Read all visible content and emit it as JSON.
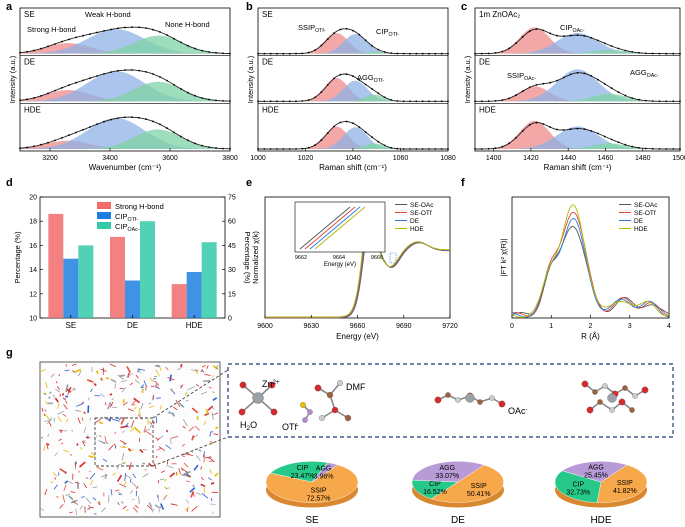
{
  "panel_letters": [
    "a",
    "b",
    "c",
    "d",
    "e",
    "f",
    "g"
  ],
  "chart_data": [
    {
      "id": "a",
      "type": "line",
      "title": "",
      "xlabel": "Wavenumber (cm⁻¹)",
      "ylabel": "Intensity (a.u.)",
      "xlim": [
        3100,
        3800
      ],
      "xticks": [
        3200,
        3400,
        3600,
        3800
      ],
      "row_labels": [
        "SE",
        "DE",
        "HDE"
      ],
      "annotations": [
        "Strong H-bond",
        "Weak H-bond",
        "None H-bond"
      ],
      "components": [
        {
          "name": "Strong H-bond",
          "color": "#f08a8a",
          "center": 3260,
          "width": 75
        },
        {
          "name": "Weak H-bond",
          "color": "#8fb2e6",
          "center": 3420,
          "width": 95
        },
        {
          "name": "None H-bond",
          "color": "#7fd3a6",
          "center": 3560,
          "width": 80
        }
      ],
      "rows": [
        {
          "label": "SE",
          "amps": [
            0.28,
            0.65,
            0.48
          ]
        },
        {
          "label": "DE",
          "amps": [
            0.3,
            0.8,
            0.52
          ]
        },
        {
          "label": "HDE",
          "amps": [
            0.22,
            0.82,
            0.52
          ]
        }
      ]
    },
    {
      "id": "b",
      "type": "line",
      "xlabel": "Raman shift (cm⁻¹)",
      "ylabel": "Intensity (a.u.)",
      "xlim": [
        1000,
        1080
      ],
      "xticks": [
        1000,
        1020,
        1040,
        1060,
        1080
      ],
      "row_labels": [
        "SE",
        "DE",
        "HDE"
      ],
      "annotations": {
        "ssip": "SSIP",
        "ssip_sub": "OTf-",
        "cip": "CIP",
        "cip_sub": "OTf-",
        "agg": "AGG",
        "agg_sub": "OTf-"
      },
      "components": [
        {
          "name": "SSIP",
          "color": "#f08a8a",
          "center": 1033,
          "width": 5
        },
        {
          "name": "CIP",
          "color": "#8fb2e6",
          "center": 1041,
          "width": 5
        },
        {
          "name": "AGG",
          "color": "#7fd3a6",
          "center": 1049,
          "width": 4
        }
      ],
      "rows": [
        {
          "label": "SE",
          "amps": [
            0.55,
            0.52,
            0.05
          ]
        },
        {
          "label": "DE",
          "amps": [
            0.62,
            0.55,
            0.18
          ]
        },
        {
          "label": "HDE",
          "amps": [
            0.6,
            0.58,
            0.15
          ]
        }
      ]
    },
    {
      "id": "c",
      "type": "line",
      "xlabel": "Raman shift (cm⁻¹)",
      "ylabel": "Intensity (a.u.)",
      "xlim": [
        1390,
        1500
      ],
      "xticks": [
        1400,
        1420,
        1440,
        1460,
        1480,
        1500
      ],
      "row_labels": [
        "1m ZnOAc₂",
        "DE",
        "HDE"
      ],
      "annotations": {
        "cip": "CIP",
        "cip_sub": "OAc-",
        "ssip": "SSIP",
        "ssip_sub": "OAc-",
        "agg": "AGG",
        "agg_sub": "OAc-"
      },
      "components": [
        {
          "name": "SSIP",
          "color": "#f08a8a",
          "center": 1422,
          "width": 8
        },
        {
          "name": "CIP",
          "color": "#8fb2e6",
          "center": 1445,
          "width": 11
        },
        {
          "name": "AGG",
          "color": "#7fd3a6",
          "center": 1462,
          "width": 9
        }
      ],
      "rows": [
        {
          "label": "1m ZnOAc₂",
          "amps": [
            0.7,
            0.55,
            0.1
          ]
        },
        {
          "label": "DE",
          "amps": [
            0.4,
            0.85,
            0.2
          ]
        },
        {
          "label": "HDE",
          "amps": [
            0.75,
            0.6,
            0.15
          ]
        }
      ]
    },
    {
      "id": "d",
      "type": "bar",
      "categories": [
        "SE",
        "DE",
        "HDE"
      ],
      "ylabel": "Percentage (%)",
      "ylabel_right": "Percentage (%)",
      "ylim": [
        10,
        20
      ],
      "yticks": [
        10,
        12,
        14,
        16,
        18,
        20
      ],
      "ylim_right": [
        0,
        75
      ],
      "yticks_right": [
        0,
        15,
        30,
        45,
        60,
        75
      ],
      "legend": [
        "Strong H-bond",
        "CIP",
        "CIP"
      ],
      "legend_subs": [
        "",
        "OTf-",
        "OAc-"
      ],
      "series": [
        {
          "name": "Strong H-bond",
          "axis": "left",
          "color": "#f26b6b",
          "values": [
            18.6,
            16.7,
            12.8
          ]
        },
        {
          "name": "CIP OTf-",
          "axis": "left",
          "color": "#1f7fe0",
          "values": [
            14.9,
            13.1,
            13.8
          ]
        },
        {
          "name": "CIP OAc-",
          "axis": "right",
          "color": "#33c9a8",
          "values": [
            45,
            60,
            47
          ]
        }
      ]
    },
    {
      "id": "e",
      "type": "line",
      "xlabel": "Energy (eV)",
      "ylabel": "Normalized χ(k)",
      "xlim": [
        9600,
        9720
      ],
      "xticks": [
        9600,
        9630,
        9660,
        9690,
        9720
      ],
      "legend": [
        "SE-OAc",
        "SE-OTf",
        "DE",
        "HDE"
      ],
      "colors": [
        "#555555",
        "#e0443c",
        "#2a7de1",
        "#b8b800"
      ],
      "inset": {
        "xlabel": "Energy (eV)",
        "xticks": [
          9662,
          9664,
          9666
        ]
      },
      "ylim": [
        0,
        1.8
      ]
    },
    {
      "id": "f",
      "type": "line",
      "xlabel": "R (Å)",
      "ylabel": "|FT k² χ(R)|",
      "xlim": [
        0,
        4
      ],
      "xticks": [
        0,
        1,
        2,
        3,
        4
      ],
      "legend": [
        "SE-OAc",
        "SE-OTf",
        "DE",
        "HDE"
      ],
      "colors": [
        "#555555",
        "#e0443c",
        "#2a7de1",
        "#b8b800"
      ],
      "peaks": [
        1.5,
        1.72,
        1.58,
        1.78
      ]
    },
    {
      "id": "g",
      "type": "pie",
      "molecules": {
        "zn": "Zn",
        "zn_sup": "2+",
        "h2o_h": "H",
        "h2o_sub": "2",
        "h2o_o": "O",
        "otf": "OTf",
        "otf_sup": "-",
        "dmf": "DMF",
        "oac": "OAc",
        "oac_sup": "-"
      },
      "pies": [
        {
          "label": "SE",
          "slices": [
            {
              "name": "SSIP",
              "value": 72.57,
              "text": "72.57%"
            },
            {
              "name": "CIP",
              "value": 23.47,
              "text": "23.47%"
            },
            {
              "name": "AGG",
              "value": 3.96,
              "text": "3.96%"
            }
          ]
        },
        {
          "label": "DE",
          "slices": [
            {
              "name": "SSIP",
              "value": 50.41,
              "text": "50.41%"
            },
            {
              "name": "CIP",
              "value": 16.52,
              "text": "16.52%"
            },
            {
              "name": "AGG",
              "value": 33.07,
              "text": "33.07%"
            }
          ]
        },
        {
          "label": "HDE",
          "slices": [
            {
              "name": "SSIP",
              "value": 41.82,
              "text": "41.82%"
            },
            {
              "name": "CIP",
              "value": 32.73,
              "text": "32.73%"
            },
            {
              "name": "AGG",
              "value": 25.45,
              "text": "25.45%"
            }
          ]
        }
      ],
      "slice_colors": {
        "SSIP": "#f7a84a",
        "CIP": "#27c98a",
        "AGG": "#b79ad6"
      }
    }
  ]
}
